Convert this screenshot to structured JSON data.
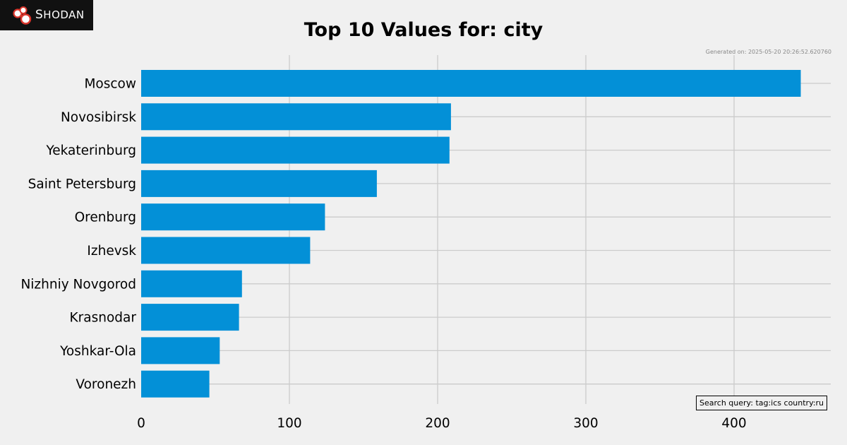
{
  "logo": {
    "first": "S",
    "rest": "HODAN"
  },
  "title": "Top 10 Values for: city",
  "generated": "Generated on: 2025-05-20 20:26:52.620760",
  "search_query": "Search query: tag:ics country:ru",
  "colors": {
    "bar": "#0390d7",
    "grid": "#cbcbcb",
    "background": "#f0f0f0"
  },
  "chart_data": {
    "type": "bar",
    "orientation": "horizontal",
    "title": "Top 10 Values for: city",
    "categories": [
      "Moscow",
      "Novosibirsk",
      "Yekaterinburg",
      "Saint Petersburg",
      "Orenburg",
      "Izhevsk",
      "Nizhniy Novgorod",
      "Krasnodar",
      "Yoshkar-Ola",
      "Voronezh"
    ],
    "values": [
      445,
      209,
      208,
      159,
      124,
      114,
      68,
      66,
      53,
      46
    ],
    "xticks": [
      0,
      100,
      200,
      300,
      400
    ],
    "xlim": [
      0,
      466
    ],
    "grid": true
  }
}
